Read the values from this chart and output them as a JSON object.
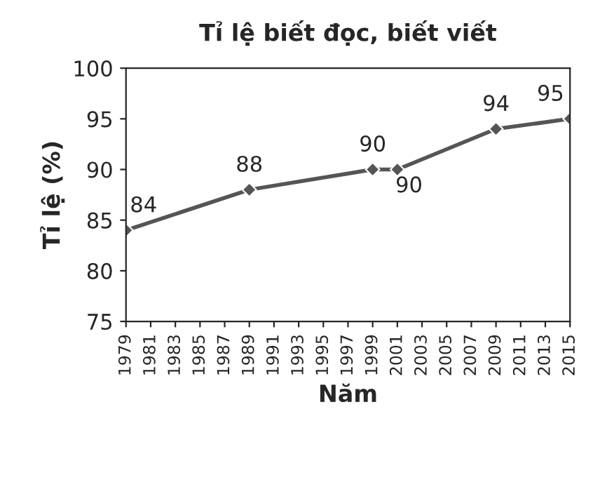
{
  "chart_data": {
    "type": "line",
    "title": "Tỉ lệ biết đọc, biết viết",
    "xlabel": "Năm",
    "ylabel": "Tỉ lệ (%)",
    "x": [
      1979,
      1989,
      1999,
      2001,
      2009,
      2015
    ],
    "series": [
      {
        "color": "#555555",
        "values": [
          84,
          88,
          90,
          90,
          94,
          95
        ]
      }
    ],
    "xlim": [
      1979,
      2015
    ],
    "xticks": [
      1979,
      1981,
      1983,
      1985,
      1987,
      1989,
      1991,
      1993,
      1995,
      1997,
      1999,
      2001,
      2003,
      2005,
      2007,
      2009,
      2011,
      2013,
      2015
    ],
    "ylim": [
      75,
      100
    ],
    "yticks": [
      75,
      80,
      85,
      90,
      95,
      100
    ],
    "data_labels": true,
    "marker": "diamond",
    "line_style": "solid",
    "grid": false,
    "legend": false
  }
}
